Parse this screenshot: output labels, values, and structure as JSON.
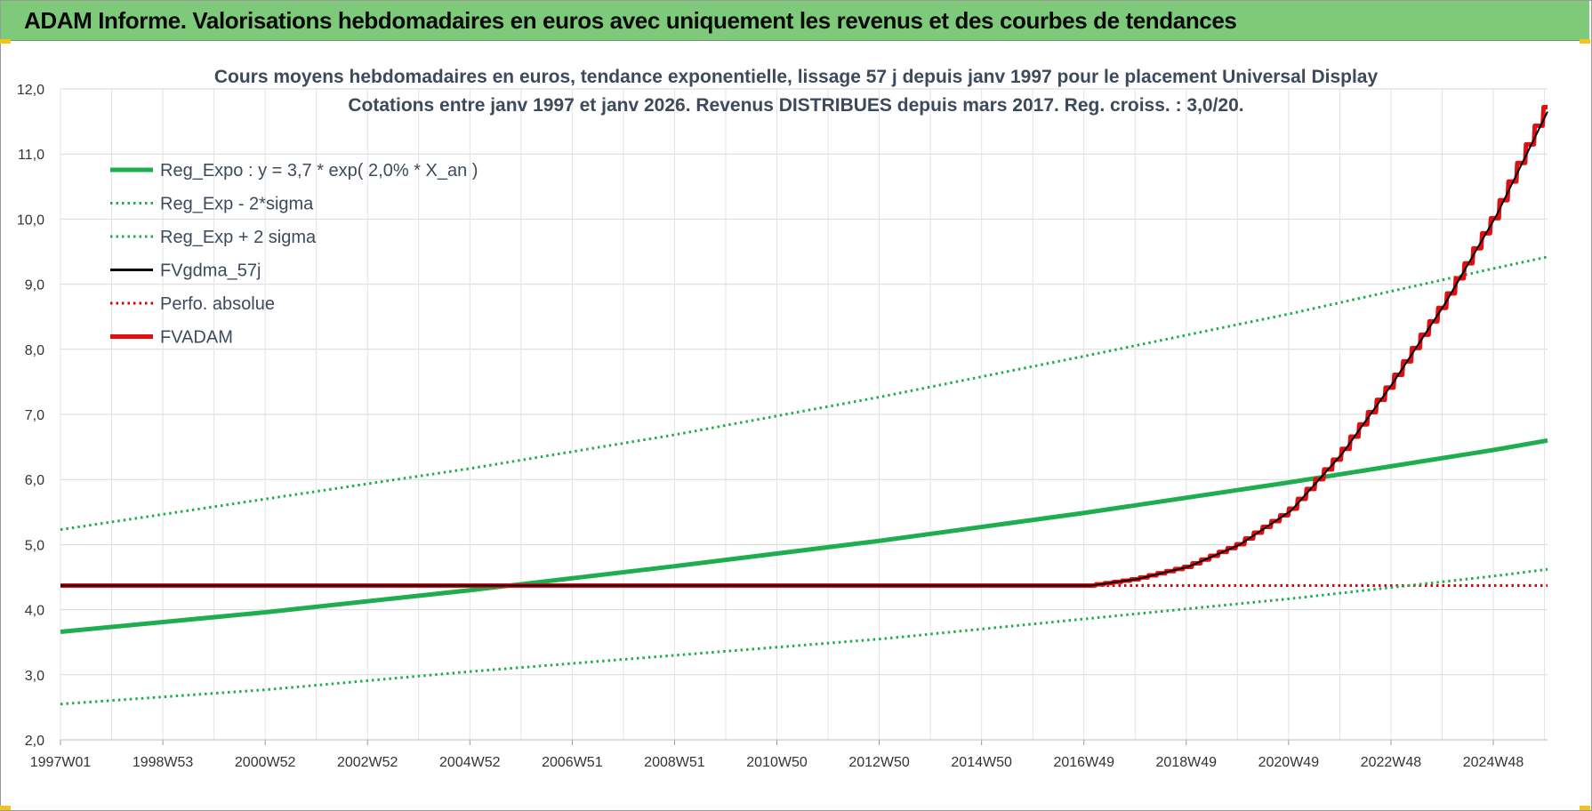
{
  "header": {
    "title": "ADAM Informe. Valorisations hebdomadaires en euros avec uniquement les revenus et des courbes de tendances"
  },
  "chart_data": {
    "type": "line",
    "title_line1": "Cours moyens hebdomadaires en euros, tendance exponentielle, lissage 57 j depuis janv 1997  pour le placement Universal Display",
    "title_line2": "Cotations entre janv 1997 et janv 2026. Revenus DISTRIBUES depuis mars 2017.  Reg. croiss. : 3,0/20.",
    "xlabel": "",
    "ylabel": "",
    "ylim": [
      2.0,
      12.0
    ],
    "y_ticks": [
      "12,0",
      "11,0",
      "10,0",
      "9,0",
      "8,0",
      "7,0",
      "6,0",
      "5,0",
      "4,0",
      "3,0",
      "2,0"
    ],
    "x_ticks": [
      "1997W01",
      "1998W53",
      "2000W52",
      "2002W52",
      "2004W52",
      "2006W51",
      "2008W51",
      "2010W50",
      "2012W50",
      "2014W50",
      "2016W49",
      "2018W49",
      "2020W49",
      "2022W48",
      "2024W48"
    ],
    "x_range_years": [
      1997.0,
      2026.0
    ],
    "grid": true,
    "legend_position": "top-left",
    "series": [
      {
        "name": "Reg_Expo : y = 3,7 * exp( 2,0% *  X_an )",
        "color": "#1fae4f",
        "style": "solid-thick",
        "x": [
          1997.0,
          2001.0,
          2005.0,
          2009.0,
          2013.0,
          2017.0,
          2021.0,
          2025.0,
          2026.0
        ],
        "y": [
          3.66,
          3.96,
          4.3,
          4.67,
          5.06,
          5.49,
          5.96,
          6.46,
          6.6
        ]
      },
      {
        "name": "Reg_Exp - 2*sigma",
        "color": "#1fae4f",
        "style": "dotted",
        "x": [
          1997.0,
          2001.0,
          2005.0,
          2009.0,
          2013.0,
          2017.0,
          2021.0,
          2025.0,
          2026.0
        ],
        "y": [
          2.55,
          2.77,
          3.05,
          3.3,
          3.55,
          3.86,
          4.17,
          4.52,
          4.62
        ]
      },
      {
        "name": "Reg_Exp + 2 sigma",
        "color": "#1fae4f",
        "style": "dotted",
        "x": [
          1997.0,
          2001.0,
          2005.0,
          2009.0,
          2013.0,
          2017.0,
          2021.0,
          2025.0,
          2026.0
        ],
        "y": [
          5.23,
          5.7,
          6.17,
          6.69,
          7.27,
          7.9,
          8.55,
          9.25,
          9.42
        ]
      },
      {
        "name": "FVgdma_57j",
        "color": "#000000",
        "style": "solid",
        "x": [
          1997.0,
          2017.1,
          2018.0,
          2019.0,
          2020.0,
          2021.0,
          2022.0,
          2023.0,
          2024.0,
          2025.0,
          2026.0
        ],
        "y": [
          4.37,
          4.37,
          4.47,
          4.66,
          5.0,
          5.52,
          6.4,
          7.5,
          8.7,
          10.05,
          11.65
        ]
      },
      {
        "name": "Perfo. absolue",
        "color": "#e00000",
        "style": "dotted",
        "x": [
          1997.0,
          2017.1,
          2026.0
        ],
        "y": [
          4.37,
          4.37,
          4.37
        ]
      },
      {
        "name": "FVADAM",
        "color": "#e01010",
        "style": "steps-thick",
        "x": [
          1997.0,
          2017.1,
          2018.0,
          2019.0,
          2020.0,
          2021.0,
          2022.0,
          2023.0,
          2024.0,
          2025.0,
          2026.0
        ],
        "y": [
          4.37,
          4.37,
          4.47,
          4.66,
          5.0,
          5.52,
          6.4,
          7.5,
          8.7,
          10.05,
          11.72
        ]
      }
    ]
  }
}
